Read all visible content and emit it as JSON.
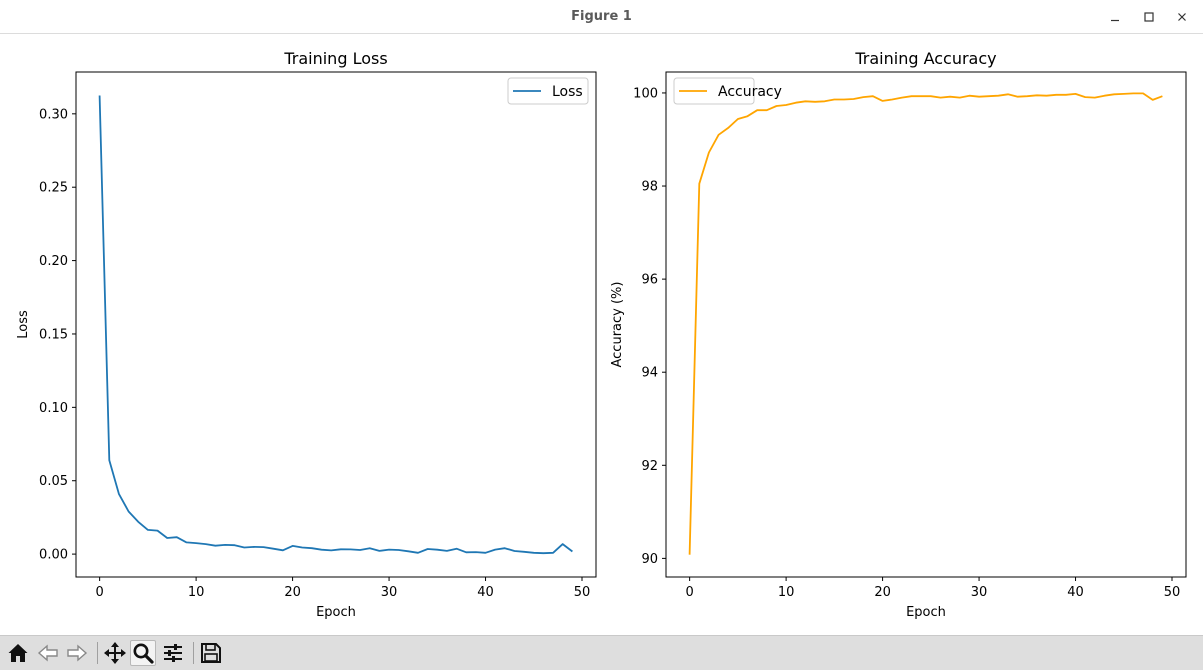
{
  "window": {
    "title": "Figure 1",
    "controls": [
      "minimize-icon",
      "maximize-icon",
      "close-icon"
    ]
  },
  "toolbar": {
    "buttons": [
      {
        "name": "home-icon",
        "label": "Home"
      },
      {
        "name": "back-icon",
        "label": "Back"
      },
      {
        "name": "forward-icon",
        "label": "Forward"
      },
      {
        "name": "pan-icon",
        "label": "Pan"
      },
      {
        "name": "zoom-icon",
        "label": "Zoom",
        "active": true
      },
      {
        "name": "configure-subplots-icon",
        "label": "Configure subplots"
      },
      {
        "name": "save-icon",
        "label": "Save"
      }
    ]
  },
  "chart_data": [
    {
      "type": "line",
      "title": "Training Loss",
      "xlabel": "Epoch",
      "ylabel": "Loss",
      "xlim": [
        -2.45,
        51.45
      ],
      "ylim": [
        -0.0156,
        0.3285
      ],
      "xticks": [
        0,
        10,
        20,
        30,
        40,
        50
      ],
      "yticks": [
        0.0,
        0.05,
        0.1,
        0.15,
        0.2,
        0.25,
        0.3
      ],
      "ytick_labels": [
        "0.00",
        "0.05",
        "0.10",
        "0.15",
        "0.20",
        "0.25",
        "0.30"
      ],
      "legend_loc": "upper right",
      "series": [
        {
          "name": "Loss",
          "color": "#1f77b4",
          "x": [
            0,
            1,
            2,
            3,
            4,
            5,
            6,
            7,
            8,
            9,
            10,
            11,
            12,
            13,
            14,
            15,
            16,
            17,
            18,
            19,
            20,
            21,
            22,
            23,
            24,
            25,
            26,
            27,
            28,
            29,
            30,
            31,
            32,
            33,
            34,
            35,
            36,
            37,
            38,
            39,
            40,
            41,
            42,
            43,
            44,
            45,
            46,
            47,
            48,
            49
          ],
          "values": [
            0.3125,
            0.064,
            0.041,
            0.029,
            0.022,
            0.0165,
            0.016,
            0.011,
            0.0115,
            0.008,
            0.0075,
            0.0068,
            0.0057,
            0.0063,
            0.0061,
            0.0045,
            0.0049,
            0.0048,
            0.0037,
            0.0026,
            0.0056,
            0.0045,
            0.004,
            0.003,
            0.0025,
            0.0033,
            0.0032,
            0.0028,
            0.004,
            0.0022,
            0.0031,
            0.0028,
            0.0019,
            0.0009,
            0.0035,
            0.003,
            0.0022,
            0.0037,
            0.0012,
            0.0014,
            0.0009,
            0.0031,
            0.004,
            0.0021,
            0.0016,
            0.0009,
            0.0006,
            0.0009,
            0.0068,
            0.0018
          ]
        }
      ]
    },
    {
      "type": "line",
      "title": "Training Accuracy",
      "xlabel": "Epoch",
      "ylabel": "Accuracy (%)",
      "xlim": [
        -2.45,
        51.45
      ],
      "ylim": [
        89.6,
        100.45
      ],
      "xticks": [
        0,
        10,
        20,
        30,
        40,
        50
      ],
      "yticks": [
        90,
        92,
        94,
        96,
        98,
        100
      ],
      "ytick_labels": [
        "90",
        "92",
        "94",
        "96",
        "98",
        "100"
      ],
      "legend_loc": "upper left",
      "series": [
        {
          "name": "Accuracy",
          "color": "#ffa500",
          "x": [
            0,
            1,
            2,
            3,
            4,
            5,
            6,
            7,
            8,
            9,
            10,
            11,
            12,
            13,
            14,
            15,
            16,
            17,
            18,
            19,
            20,
            21,
            22,
            23,
            24,
            25,
            26,
            27,
            28,
            29,
            30,
            31,
            32,
            33,
            34,
            35,
            36,
            37,
            38,
            39,
            40,
            41,
            42,
            43,
            44,
            45,
            46,
            47,
            48,
            49
          ],
          "values": [
            90.08,
            98.05,
            98.72,
            99.1,
            99.25,
            99.44,
            99.5,
            99.63,
            99.63,
            99.72,
            99.74,
            99.79,
            99.82,
            99.81,
            99.82,
            99.86,
            99.86,
            99.87,
            99.91,
            99.93,
            99.83,
            99.86,
            99.9,
            99.93,
            99.93,
            99.93,
            99.9,
            99.92,
            99.9,
            99.94,
            99.92,
            99.93,
            99.94,
            99.97,
            99.92,
            99.93,
            99.95,
            99.94,
            99.96,
            99.96,
            99.98,
            99.91,
            99.9,
            99.94,
            99.97,
            99.98,
            99.99,
            99.99,
            99.85,
            99.93
          ]
        }
      ]
    }
  ]
}
